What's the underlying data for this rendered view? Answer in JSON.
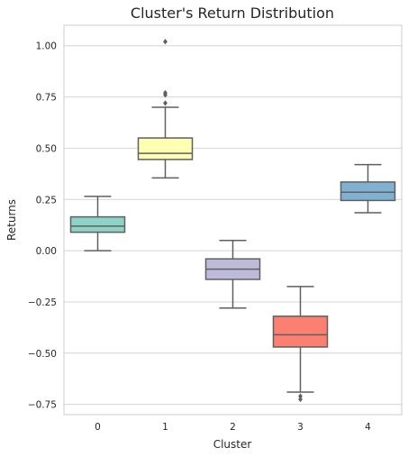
{
  "chart_data": {
    "type": "box",
    "title": "Cluster's Return Distribution",
    "xlabel": "Cluster",
    "ylabel": "Returns",
    "ylim": [
      -0.8,
      1.1
    ],
    "yticks": [
      -0.75,
      -0.5,
      -0.25,
      0.0,
      0.25,
      0.5,
      0.75,
      1.0
    ],
    "ytick_labels": [
      "−0.75",
      "−0.50",
      "−0.25",
      "0.00",
      "0.25",
      "0.50",
      "0.75",
      "1.00"
    ],
    "grid": true,
    "categories": [
      "0",
      "1",
      "2",
      "3",
      "4"
    ],
    "boxes": [
      {
        "category": "0",
        "whisker_low": 0.0,
        "q1": 0.09,
        "median": 0.12,
        "q3": 0.165,
        "whisker_high": 0.265,
        "outliers": [],
        "color": "#8dd3c7"
      },
      {
        "category": "1",
        "whisker_low": 0.355,
        "q1": 0.445,
        "median": 0.475,
        "q3": 0.55,
        "whisker_high": 0.7,
        "outliers": [
          0.72,
          0.76,
          0.77,
          1.02
        ],
        "color": "#ffffb3"
      },
      {
        "category": "2",
        "whisker_low": -0.28,
        "q1": -0.14,
        "median": -0.09,
        "q3": -0.04,
        "whisker_high": 0.05,
        "outliers": [],
        "color": "#bebada"
      },
      {
        "category": "3",
        "whisker_low": -0.69,
        "q1": -0.47,
        "median": -0.41,
        "q3": -0.32,
        "whisker_high": -0.175,
        "outliers": [
          -0.71,
          -0.725
        ],
        "color": "#fb8072"
      },
      {
        "category": "4",
        "whisker_low": 0.185,
        "q1": 0.245,
        "median": 0.285,
        "q3": 0.335,
        "whisker_high": 0.42,
        "outliers": [],
        "color": "#80b1d3"
      }
    ]
  }
}
